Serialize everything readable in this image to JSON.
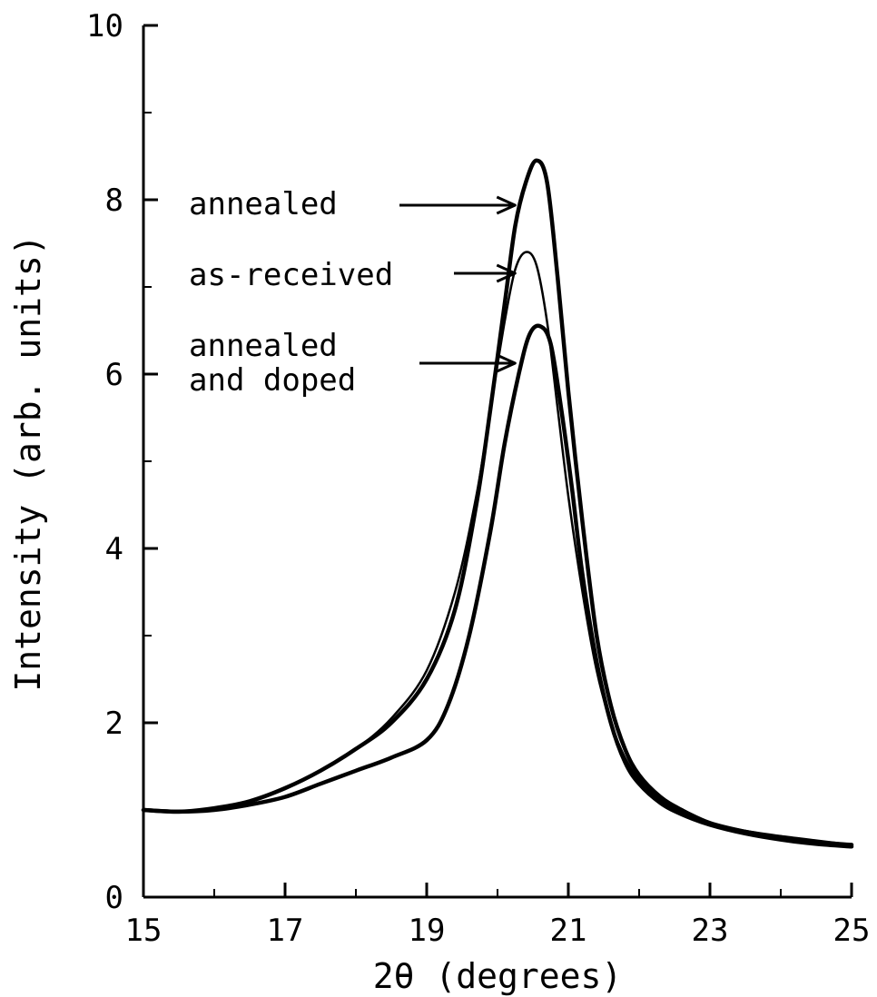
{
  "chart_data": {
    "type": "line",
    "title": "",
    "xlabel": "2θ  (degrees)",
    "ylabel": "Intensity  (arb. units)",
    "xlim": [
      15,
      25
    ],
    "ylim": [
      0,
      10
    ],
    "x_ticks": [
      "15",
      "17",
      "19",
      "21",
      "23",
      "25"
    ],
    "y_ticks": [
      "0",
      "2",
      "4",
      "6",
      "8",
      "10"
    ],
    "grid": false,
    "legend": "none",
    "series": [
      {
        "name": "annealed",
        "stroke": "thick",
        "points": [
          [
            15.0,
            1.0
          ],
          [
            15.5,
            0.98
          ],
          [
            16.0,
            1.02
          ],
          [
            16.5,
            1.1
          ],
          [
            17.0,
            1.25
          ],
          [
            17.5,
            1.45
          ],
          [
            18.0,
            1.7
          ],
          [
            18.5,
            2.0
          ],
          [
            19.0,
            2.5
          ],
          [
            19.4,
            3.3
          ],
          [
            19.7,
            4.5
          ],
          [
            19.9,
            5.6
          ],
          [
            20.1,
            6.8
          ],
          [
            20.25,
            7.7
          ],
          [
            20.4,
            8.2
          ],
          [
            20.55,
            8.45
          ],
          [
            20.7,
            8.2
          ],
          [
            20.85,
            7.1
          ],
          [
            21.0,
            5.8
          ],
          [
            21.2,
            4.3
          ],
          [
            21.4,
            3.0
          ],
          [
            21.6,
            2.2
          ],
          [
            21.8,
            1.7
          ],
          [
            22.0,
            1.4
          ],
          [
            22.3,
            1.15
          ],
          [
            22.6,
            1.0
          ],
          [
            23.0,
            0.85
          ],
          [
            23.5,
            0.75
          ],
          [
            24.0,
            0.68
          ],
          [
            24.5,
            0.63
          ],
          [
            25.0,
            0.6
          ]
        ]
      },
      {
        "name": "as-received",
        "stroke": "thin",
        "points": [
          [
            15.0,
            1.0
          ],
          [
            15.5,
            0.98
          ],
          [
            16.0,
            1.02
          ],
          [
            16.5,
            1.1
          ],
          [
            17.0,
            1.25
          ],
          [
            17.5,
            1.45
          ],
          [
            18.0,
            1.7
          ],
          [
            18.5,
            2.05
          ],
          [
            19.0,
            2.6
          ],
          [
            19.4,
            3.5
          ],
          [
            19.7,
            4.6
          ],
          [
            19.9,
            5.6
          ],
          [
            20.1,
            6.6
          ],
          [
            20.25,
            7.2
          ],
          [
            20.4,
            7.4
          ],
          [
            20.55,
            7.25
          ],
          [
            20.7,
            6.6
          ],
          [
            20.85,
            5.6
          ],
          [
            21.0,
            4.6
          ],
          [
            21.2,
            3.5
          ],
          [
            21.4,
            2.6
          ],
          [
            21.6,
            2.0
          ],
          [
            21.8,
            1.6
          ],
          [
            22.0,
            1.35
          ],
          [
            22.3,
            1.12
          ],
          [
            22.6,
            0.98
          ],
          [
            23.0,
            0.85
          ],
          [
            23.5,
            0.76
          ],
          [
            24.0,
            0.7
          ],
          [
            24.5,
            0.65
          ],
          [
            25.0,
            0.6
          ]
        ]
      },
      {
        "name": "annealed and doped",
        "stroke": "thick",
        "points": [
          [
            15.0,
            1.0
          ],
          [
            15.5,
            0.98
          ],
          [
            16.0,
            1.0
          ],
          [
            16.5,
            1.06
          ],
          [
            17.0,
            1.15
          ],
          [
            17.5,
            1.3
          ],
          [
            18.0,
            1.45
          ],
          [
            18.5,
            1.6
          ],
          [
            19.0,
            1.8
          ],
          [
            19.3,
            2.2
          ],
          [
            19.6,
            3.0
          ],
          [
            19.9,
            4.2
          ],
          [
            20.1,
            5.2
          ],
          [
            20.3,
            6.0
          ],
          [
            20.45,
            6.45
          ],
          [
            20.6,
            6.55
          ],
          [
            20.75,
            6.35
          ],
          [
            20.9,
            5.6
          ],
          [
            21.05,
            4.7
          ],
          [
            21.2,
            3.7
          ],
          [
            21.4,
            2.7
          ],
          [
            21.6,
            2.0
          ],
          [
            21.8,
            1.55
          ],
          [
            22.0,
            1.3
          ],
          [
            22.3,
            1.08
          ],
          [
            22.6,
            0.95
          ],
          [
            23.0,
            0.83
          ],
          [
            23.5,
            0.73
          ],
          [
            24.0,
            0.66
          ],
          [
            24.5,
            0.61
          ],
          [
            25.0,
            0.58
          ]
        ]
      }
    ],
    "annotations": [
      {
        "lines": [
          "annealed"
        ],
        "target": [
          20.35,
          8.0
        ]
      },
      {
        "lines": [
          "as-received"
        ],
        "target": [
          20.35,
          7.1
        ]
      },
      {
        "lines": [
          "annealed",
          "and doped"
        ],
        "target": [
          20.35,
          6.1
        ]
      }
    ]
  }
}
